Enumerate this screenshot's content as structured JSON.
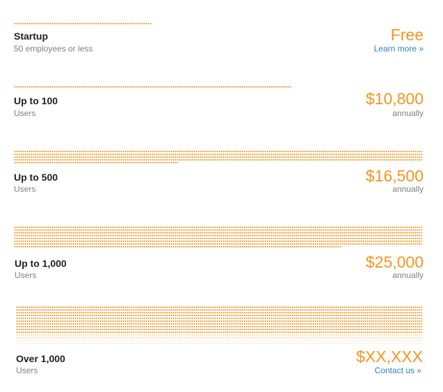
{
  "tiers": [
    {
      "name": "Startup",
      "subtitle": "50 employees or less",
      "price": "Free",
      "price_note": "Learn more »"
    },
    {
      "name": "Up to 100",
      "subtitle": "Users",
      "price": "$10,800",
      "price_note": "annually"
    },
    {
      "name": "Up to 500",
      "subtitle": "Users",
      "price": "$16,500",
      "price_note": "annually"
    },
    {
      "name": "Up to 1,000",
      "subtitle": "Users",
      "price": "$25,000",
      "price_note": "annually"
    },
    {
      "name": "Over 1,000",
      "subtitle": "Users",
      "price": "$XX,XXX",
      "price_note": "Contact us »"
    }
  ],
  "colors": {
    "accent": "#f7941e",
    "link": "#2a7fbf",
    "text": "#1f1f1f",
    "muted": "#808080"
  }
}
